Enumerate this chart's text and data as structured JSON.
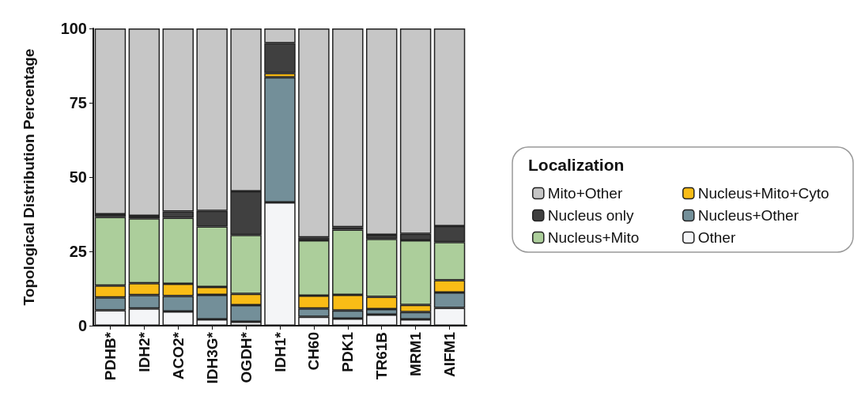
{
  "chart_data": {
    "type": "bar",
    "stacked": true,
    "ylabel": "Topological Distribution Percentage",
    "legend_title": "Localization",
    "legend": "right",
    "grid": false,
    "categories": [
      "PDHB*",
      "IDH2*",
      "ACO2*",
      "IDH3G*",
      "OGDH*",
      "IDH1*",
      "CH60",
      "PDK1",
      "TR61B",
      "MRM1",
      "AIFM1"
    ],
    "ylim": [
      0,
      100
    ],
    "yticks": [
      0,
      25,
      50,
      75,
      100
    ],
    "series": [
      {
        "name": "Other",
        "color": "#f4f5f7",
        "values": [
          5.2,
          5.8,
          4.8,
          2.1,
          1.3,
          41.5,
          3.0,
          2.4,
          3.7,
          2.1,
          6.0
        ]
      },
      {
        "name": "Nucleus+Other",
        "color": "#738f99",
        "values": [
          4.3,
          4.5,
          5.2,
          8.3,
          5.6,
          42.1,
          2.8,
          2.7,
          1.9,
          2.5,
          5.2
        ]
      },
      {
        "name": "Nucleus+Mito+Cyto",
        "color": "#f9bc16",
        "values": [
          4.0,
          4.0,
          4.1,
          2.6,
          3.8,
          1.4,
          4.3,
          5.3,
          4.1,
          2.4,
          4.1
        ]
      },
      {
        "name": "Nucleus+Mito",
        "color": "#acce9b",
        "values": [
          23.1,
          21.8,
          22.2,
          20.4,
          19.8,
          null,
          18.6,
          21.9,
          19.5,
          21.7,
          12.8
        ]
      },
      {
        "name": "Nucleus only",
        "color": "#404040",
        "values": [
          0.9,
          0.9,
          2.1,
          5.2,
          14.7,
          10.1,
          1.0,
          0.9,
          1.4,
          2.2,
          5.4
        ]
      },
      {
        "name": "Mito+Other",
        "color": "#c6c6c6",
        "values": [
          62.5,
          63.0,
          61.6,
          61.4,
          54.8,
          4.9,
          70.3,
          66.8,
          69.4,
          69.1,
          66.5
        ]
      }
    ]
  }
}
